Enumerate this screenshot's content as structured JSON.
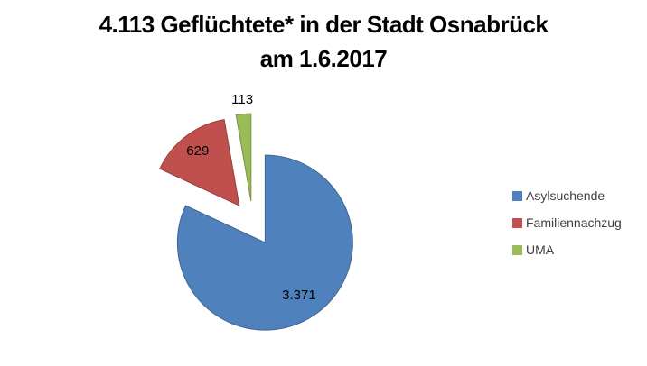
{
  "title": {
    "line1": "4.113 Geflüchtete* in der Stadt Osnabrück",
    "line2": "am 1.6.2017",
    "color": "#000000"
  },
  "chart_data": {
    "type": "pie",
    "title": "4.113 Geflüchtete* in der Stadt Osnabrück am 1.6.2017",
    "total": 4113,
    "exploded": true,
    "start_angle_deg": 0,
    "direction": "clockwise",
    "legend_position": "right",
    "background": "#FFFFFF",
    "data_label_color": "#000000",
    "legend_text_color": "#404040",
    "slices": [
      {
        "name": "Asylsuchende",
        "value": 3371,
        "label": "3.371",
        "color": "#4F81BD"
      },
      {
        "name": "Familiennachzug",
        "value": 629,
        "label": "629",
        "color": "#C0504D"
      },
      {
        "name": "UMA",
        "value": 113,
        "label": "113",
        "color": "#9BBB59"
      }
    ]
  }
}
